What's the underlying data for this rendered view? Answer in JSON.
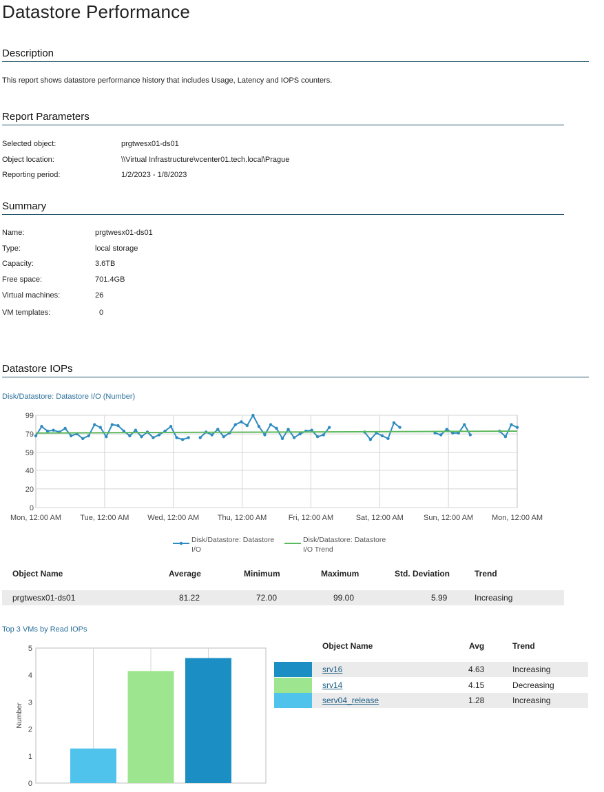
{
  "page": {
    "title": "Datastore Performance"
  },
  "description": {
    "heading": "Description",
    "text": "This report shows datastore performance history that includes Usage, Latency and IOPS counters."
  },
  "parameters": {
    "heading": "Report Parameters",
    "rows": [
      {
        "label": "Selected object:",
        "value": "prgtwesx01-ds01"
      },
      {
        "label": "Object location:",
        "value": "\\\\Virtual Infrastructure\\vcenter01.tech.local\\Prague"
      },
      {
        "label": "Reporting period:",
        "value": "1/2/2023 - 1/8/2023"
      }
    ]
  },
  "summary": {
    "heading": "Summary",
    "rows": [
      {
        "label": "Name:",
        "value": "prgtwesx01-ds01"
      },
      {
        "label": "Type:",
        "value": "local storage"
      },
      {
        "label": "Capacity:",
        "value": "3.6TB"
      },
      {
        "label": "Free space:",
        "value": "701.4GB"
      },
      {
        "label": "Virtual machines:",
        "value": "26"
      },
      {
        "label": "VM templates:",
        "value": "0"
      }
    ]
  },
  "iops": {
    "heading": "Datastore IOPs",
    "chart_title": "Disk/Datastore: Datastore I/O (Number)",
    "legend": [
      {
        "label_line1": "Disk/Datastore: Datastore",
        "label_line2": "I/O",
        "color": "#2e8bc0"
      },
      {
        "label_line1": "Disk/Datastore: Datastore",
        "label_line2": "I/O Trend",
        "color": "#5cb85c"
      }
    ],
    "stats_headers": {
      "name": "Object Name",
      "avg": "Average",
      "min": "Minimum",
      "max": "Maximum",
      "std": "Std. Deviation",
      "trend": "Trend"
    },
    "stats_row": {
      "name": "prgtwesx01-ds01",
      "avg": "81.22",
      "min": "72.00",
      "max": "99.00",
      "std": "5.99",
      "trend": "Increasing"
    }
  },
  "top3": {
    "chart_title": "Top 3 VMs by Read IOPs",
    "headers": {
      "name": "Object Name",
      "avg": "Avg",
      "trend": "Trend"
    },
    "rows": [
      {
        "name": "srv16",
        "avg": "4.63",
        "trend": "Increasing",
        "color": "#1b8ec4"
      },
      {
        "name": "srv14",
        "avg": "4.15",
        "trend": "Decreasing",
        "color": "#9ee58f"
      },
      {
        "name": "serv04_release",
        "avg": "1.28",
        "trend": "Increasing",
        "color": "#4fc3ec"
      }
    ]
  },
  "chart_data": [
    {
      "type": "line",
      "title": "Disk/Datastore: Datastore I/O (Number)",
      "xlabel": "",
      "ylabel": "",
      "ylim": [
        0,
        99
      ],
      "yticks": [
        "0",
        "20",
        "40",
        "59",
        "79",
        "99"
      ],
      "xticks": [
        "Mon, 12:00 AM",
        "Tue, 12:00 AM",
        "Wed, 12:00 AM",
        "Thu, 12:00 AM",
        "Fri, 12:00 AM",
        "Sat, 12:00 AM",
        "Sun, 12:00 AM",
        "Mon, 12:00 AM"
      ],
      "grid": true,
      "legend_position": "bottom",
      "x_unit": "hours since Mon 12:00 AM",
      "series": [
        {
          "name": "Disk/Datastore: Datastore I/O",
          "color": "#2e8bc0",
          "segments": [
            [
              [
                0,
                77
              ],
              [
                3,
                87
              ],
              [
                6,
                82
              ],
              [
                9,
                83
              ],
              [
                12,
                81
              ],
              [
                15,
                85
              ],
              [
                18,
                77
              ],
              [
                21,
                79
              ],
              [
                24,
                74
              ],
              [
                27,
                77
              ],
              [
                30,
                89
              ],
              [
                33,
                86
              ],
              [
                36,
                76
              ],
              [
                39,
                89
              ],
              [
                42,
                88
              ],
              [
                45,
                82
              ],
              [
                48,
                77
              ],
              [
                51,
                83
              ],
              [
                54,
                76
              ],
              [
                57,
                81
              ],
              [
                60,
                75
              ],
              [
                63,
                78
              ],
              [
                66,
                82
              ],
              [
                69,
                87
              ],
              [
                72,
                75
              ],
              [
                75,
                73
              ],
              [
                78,
                75
              ]
            ],
            [
              [
                84,
                75
              ],
              [
                87,
                81
              ],
              [
                90,
                78
              ],
              [
                93,
                84
              ],
              [
                96,
                76
              ],
              [
                99,
                80
              ],
              [
                102,
                89
              ],
              [
                105,
                92
              ],
              [
                108,
                88
              ],
              [
                111,
                99
              ],
              [
                114,
                87
              ],
              [
                117,
                78
              ],
              [
                120,
                89
              ],
              [
                123,
                85
              ],
              [
                126,
                74
              ],
              [
                129,
                84
              ],
              [
                132,
                75
              ],
              [
                135,
                79
              ],
              [
                138,
                82
              ],
              [
                141,
                83
              ],
              [
                144,
                76
              ],
              [
                147,
                78
              ],
              [
                150,
                86
              ]
            ],
            [
              [
                168,
                81
              ],
              [
                171,
                73
              ],
              [
                174,
                80
              ],
              [
                177,
                77
              ],
              [
                180,
                74
              ],
              [
                183,
                91
              ],
              [
                186,
                86
              ]
            ],
            [
              [
                204,
                80
              ],
              [
                207,
                78
              ],
              [
                210,
                84
              ],
              [
                213,
                80
              ],
              [
                216,
                80
              ],
              [
                219,
                89
              ],
              [
                222,
                78
              ]
            ],
            [
              [
                237,
                82
              ],
              [
                240,
                76
              ],
              [
                243,
                89
              ],
              [
                246,
                86
              ]
            ]
          ]
        },
        {
          "name": "Disk/Datastore: Datastore I/O Trend",
          "color": "#5cb85c",
          "segments": [
            [
              [
                0,
                80
              ],
              [
                246,
                82
              ]
            ]
          ]
        }
      ],
      "x_max": 240,
      "x_min": 0,
      "x_overflow": 246
    },
    {
      "type": "bar",
      "title": "Top 3 VMs by Read IOPs",
      "xlabel": "",
      "ylabel": "Number",
      "ylim": [
        0,
        5
      ],
      "yticks": [
        "0",
        "1",
        "2",
        "3",
        "4",
        "5"
      ],
      "grid": true,
      "categories": [
        "serv04_release",
        "srv14",
        "srv16"
      ],
      "values": [
        1.28,
        4.15,
        4.63
      ],
      "colors": [
        "#4fc3ec",
        "#9ee58f",
        "#1b8ec4"
      ]
    }
  ]
}
